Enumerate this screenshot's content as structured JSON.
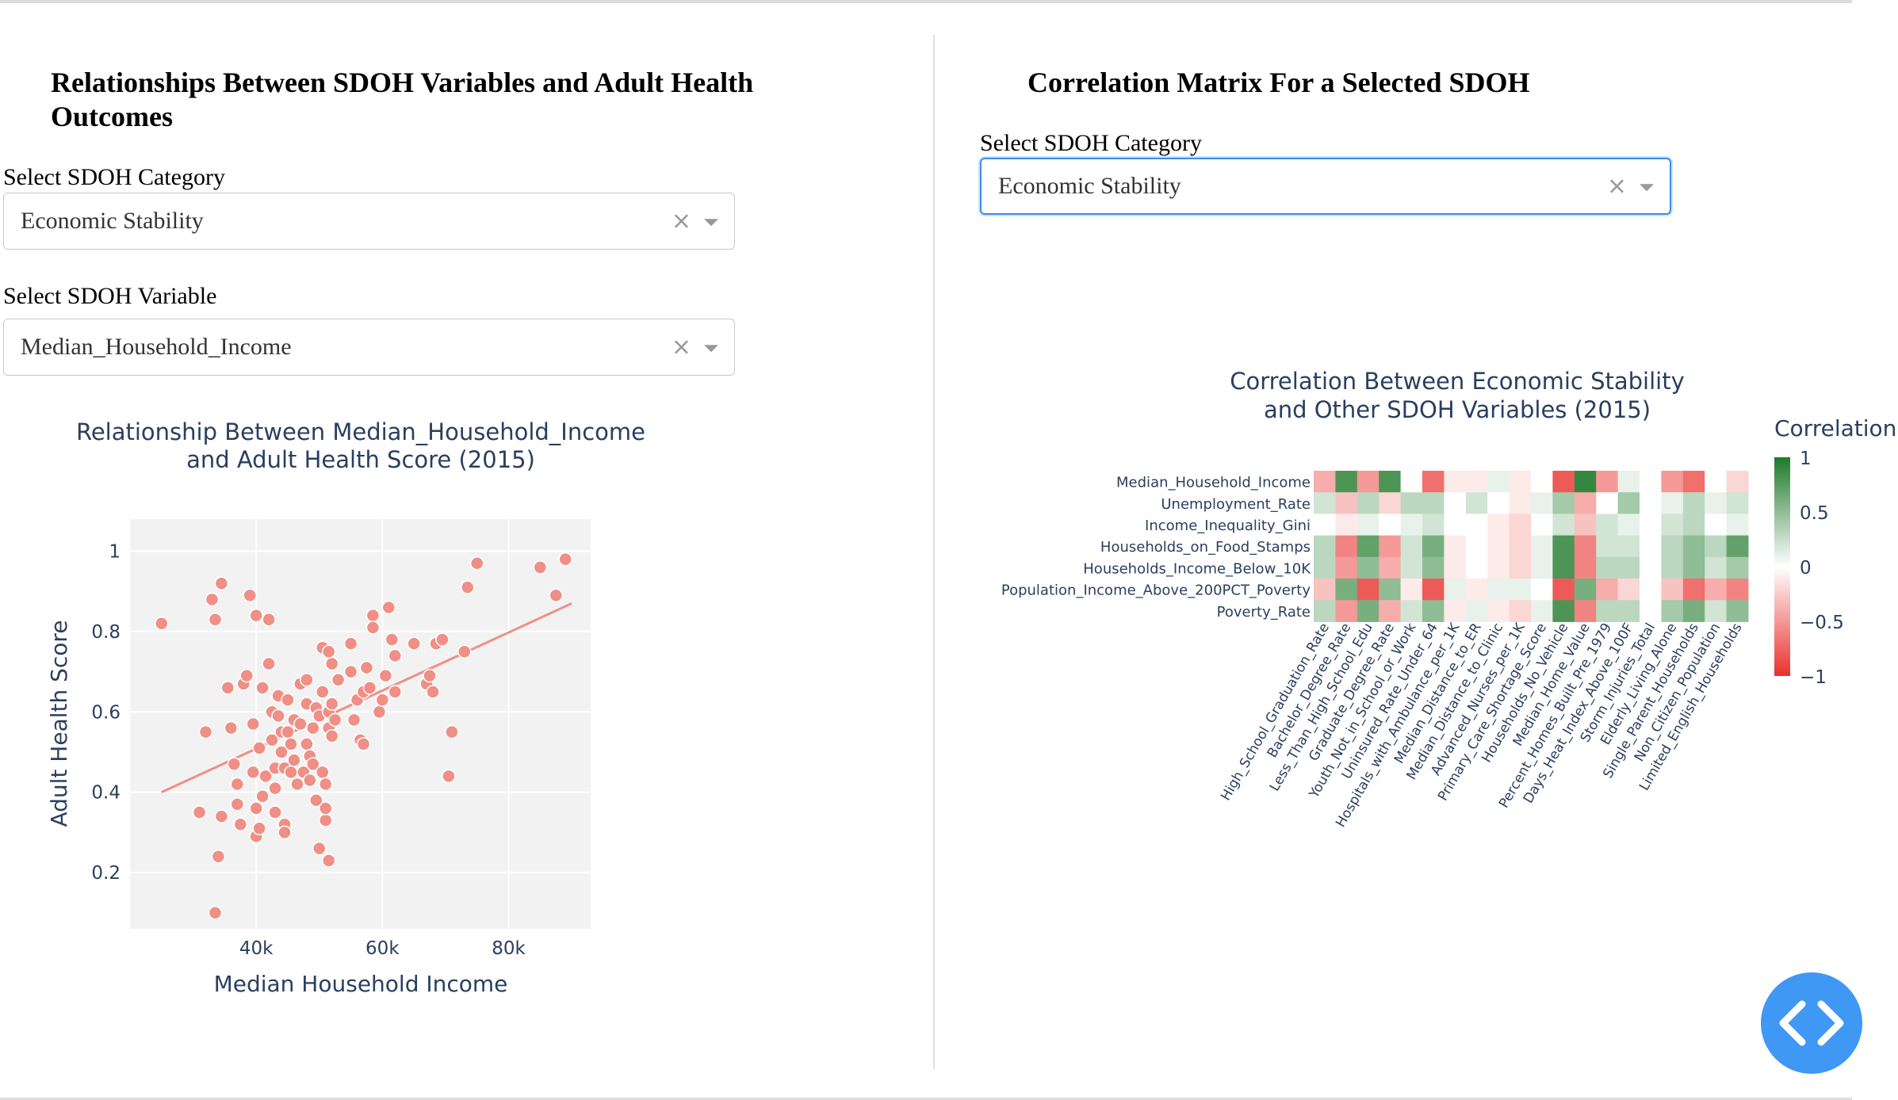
{
  "left": {
    "title": "Relationships Between SDOH Variables and Adult Health Outcomes",
    "category_label": "Select SDOH Category",
    "category_value": "Economic Stability",
    "variable_label": "Select SDOH Variable",
    "variable_value": "Median_Household_Income"
  },
  "right": {
    "title": "Correlation Matrix For a Selected SDOH",
    "category_label": "Select SDOH Category",
    "category_value": "Economic Stability"
  },
  "icons": {
    "clear": "×",
    "dropdown": "chevron-down-icon",
    "code_button": "code-brackets-icon"
  },
  "colors": {
    "scatter": "#ef8f86",
    "focus_border": "#3a8ee6",
    "fab": "#3f98f4",
    "pos": "#1f7a2a",
    "neg": "#e8322e"
  },
  "chart_data": [
    {
      "type": "scatter",
      "title_line1": "Relationship Between Median_Household_Income",
      "title_line2": "and Adult Health Score (2015)",
      "xlabel": "Median Household Income",
      "ylabel": "Adult Health Score",
      "xlim": [
        20000,
        93000
      ],
      "ylim": [
        0.06,
        1.08
      ],
      "xticks": [
        {
          "v": 40000,
          "t": "40k"
        },
        {
          "v": 60000,
          "t": "60k"
        },
        {
          "v": 80000,
          "t": "80k"
        }
      ],
      "yticks": [
        {
          "v": 0.2,
          "t": "0.2"
        },
        {
          "v": 0.4,
          "t": "0.4"
        },
        {
          "v": 0.6,
          "t": "0.6"
        },
        {
          "v": 0.8,
          "t": "0.8"
        },
        {
          "v": 1,
          "t": "1"
        }
      ],
      "trendline": [
        [
          25000,
          0.4
        ],
        [
          90000,
          0.87
        ]
      ],
      "points": [
        [
          25000,
          0.82
        ],
        [
          33000,
          0.88
        ],
        [
          33500,
          0.83
        ],
        [
          34500,
          0.92
        ],
        [
          34000,
          0.24
        ],
        [
          33500,
          0.1
        ],
        [
          31000,
          0.35
        ],
        [
          32000,
          0.55
        ],
        [
          34500,
          0.34
        ],
        [
          35500,
          0.66
        ],
        [
          36000,
          0.56
        ],
        [
          36500,
          0.47
        ],
        [
          37000,
          0.42
        ],
        [
          37000,
          0.37
        ],
        [
          37500,
          0.32
        ],
        [
          38000,
          0.67
        ],
        [
          38500,
          0.69
        ],
        [
          39000,
          0.89
        ],
        [
          39500,
          0.57
        ],
        [
          39500,
          0.45
        ],
        [
          40000,
          0.36
        ],
        [
          40000,
          0.29
        ],
        [
          40500,
          0.31
        ],
        [
          40500,
          0.51
        ],
        [
          41000,
          0.66
        ],
        [
          41000,
          0.39
        ],
        [
          41500,
          0.44
        ],
        [
          42000,
          0.72
        ],
        [
          42000,
          0.83
        ],
        [
          42500,
          0.6
        ],
        [
          42500,
          0.53
        ],
        [
          43000,
          0.46
        ],
        [
          43000,
          0.41
        ],
        [
          43000,
          0.35
        ],
        [
          43500,
          0.64
        ],
        [
          43500,
          0.59
        ],
        [
          44000,
          0.55
        ],
        [
          44000,
          0.5
        ],
        [
          44500,
          0.46
        ],
        [
          44500,
          0.32
        ],
        [
          44500,
          0.3
        ],
        [
          45000,
          0.63
        ],
        [
          45000,
          0.55
        ],
        [
          45500,
          0.52
        ],
        [
          45500,
          0.45
        ],
        [
          46000,
          0.58
        ],
        [
          46000,
          0.48
        ],
        [
          46500,
          0.42
        ],
        [
          47000,
          0.57
        ],
        [
          47000,
          0.67
        ],
        [
          47500,
          0.45
        ],
        [
          48000,
          0.62
        ],
        [
          48000,
          0.52
        ],
        [
          48000,
          0.68
        ],
        [
          48500,
          0.49
        ],
        [
          48500,
          0.43
        ],
        [
          49000,
          0.47
        ],
        [
          49000,
          0.56
        ],
        [
          49500,
          0.61
        ],
        [
          49500,
          0.38
        ],
        [
          50000,
          0.26
        ],
        [
          50000,
          0.59
        ],
        [
          50500,
          0.65
        ],
        [
          50500,
          0.45
        ],
        [
          51000,
          0.42
        ],
        [
          51000,
          0.33
        ],
        [
          51000,
          0.36
        ],
        [
          51500,
          0.6
        ],
        [
          51500,
          0.56
        ],
        [
          51500,
          0.23
        ],
        [
          52000,
          0.72
        ],
        [
          52000,
          0.62
        ],
        [
          52000,
          0.54
        ],
        [
          52500,
          0.58
        ],
        [
          53000,
          0.68
        ],
        [
          50500,
          0.76
        ],
        [
          51500,
          0.75
        ],
        [
          55000,
          0.77
        ],
        [
          55000,
          0.7
        ],
        [
          55500,
          0.58
        ],
        [
          56000,
          0.63
        ],
        [
          56500,
          0.53
        ],
        [
          57000,
          0.52
        ],
        [
          57500,
          0.71
        ],
        [
          57000,
          0.65
        ],
        [
          58000,
          0.66
        ],
        [
          58500,
          0.84
        ],
        [
          58500,
          0.81
        ],
        [
          59500,
          0.6
        ],
        [
          60000,
          0.63
        ],
        [
          60500,
          0.69
        ],
        [
          61000,
          0.86
        ],
        [
          61500,
          0.78
        ],
        [
          62000,
          0.74
        ],
        [
          62000,
          0.65
        ],
        [
          65000,
          0.77
        ],
        [
          67000,
          0.67
        ],
        [
          67500,
          0.69
        ],
        [
          68000,
          0.65
        ],
        [
          68500,
          0.77
        ],
        [
          69500,
          0.78
        ],
        [
          70500,
          0.44
        ],
        [
          71000,
          0.55
        ],
        [
          73000,
          0.75
        ],
        [
          73500,
          0.91
        ],
        [
          75000,
          0.97
        ],
        [
          85000,
          0.96
        ],
        [
          87500,
          0.89
        ],
        [
          89000,
          0.98
        ],
        [
          40000,
          0.84
        ]
      ]
    },
    {
      "type": "heatmap",
      "title_line1": "Correlation Between Economic Stability",
      "title_line2": "and Other SDOH Variables (2015)",
      "colorbar_title": "Correlation",
      "colorbar_ticks": [
        {
          "v": 1,
          "t": "1"
        },
        {
          "v": 0.5,
          "t": "0.5"
        },
        {
          "v": 0,
          "t": "0"
        },
        {
          "v": -0.5,
          "t": "−0.5"
        },
        {
          "v": -1,
          "t": "−1"
        }
      ],
      "rows": [
        "Median_Household_Income",
        "Unemployment_Rate",
        "Income_Inequality_Gini",
        "Households_on_Food_Stamps",
        "Households_Income_Below_10K",
        "Population_Income_Above_200PCT_Poverty",
        "Poverty_Rate"
      ],
      "columns": [
        "High_School_Graduation_Rate",
        "Bachelor_Degree_Rate",
        "Less_Than_High_School_Edu",
        "Graduate_Degree_Rate",
        "Youth_Not_in_School_or_Work",
        "Uninsured_Rate_Under_64",
        "Hospitals_with_Ambulance_per_1K",
        "Median_Distance_to_ER",
        "Median_Distance_to_Clinic",
        "Advanced_Nurses_per_1K",
        "Primary_Care_Shortage_Score",
        "Households_No_Vehicle",
        "Median_Home_Value",
        "Percent_Homes_Built_Pre_1979",
        "Days_Heat_Index_Above_100F",
        "Storm_Injuries_Total",
        "Elderly_Living_Alone",
        "Single_Parent_Households",
        "Non_Citizen_Population",
        "Limited_English_Households"
      ],
      "values": [
        [
          -0.4,
          0.8,
          -0.5,
          0.8,
          0.0,
          -0.7,
          -0.1,
          -0.1,
          0.1,
          -0.1,
          0.0,
          -0.8,
          0.9,
          -0.5,
          0.1,
          0.0,
          -0.5,
          -0.7,
          0.0,
          -0.2
        ],
        [
          0.2,
          -0.3,
          0.3,
          -0.2,
          0.3,
          0.3,
          0.0,
          0.2,
          0.0,
          -0.1,
          0.1,
          0.4,
          -0.4,
          0.0,
          0.4,
          0.0,
          0.1,
          0.3,
          0.1,
          0.2
        ],
        [
          0.0,
          -0.1,
          0.1,
          0.0,
          0.1,
          0.2,
          0.0,
          0.0,
          -0.1,
          -0.2,
          0.0,
          0.2,
          -0.3,
          0.2,
          0.1,
          0.0,
          0.2,
          0.3,
          0.0,
          0.1
        ],
        [
          0.3,
          -0.6,
          0.7,
          -0.5,
          0.2,
          0.6,
          -0.1,
          0.0,
          -0.1,
          -0.2,
          0.1,
          0.8,
          -0.6,
          0.2,
          0.2,
          0.0,
          0.3,
          0.5,
          0.3,
          0.7
        ],
        [
          0.3,
          -0.5,
          0.5,
          -0.4,
          0.2,
          0.5,
          -0.1,
          0.0,
          -0.1,
          -0.2,
          0.1,
          0.8,
          -0.6,
          0.3,
          0.3,
          0.0,
          0.3,
          0.5,
          0.2,
          0.4
        ],
        [
          -0.3,
          0.6,
          -0.8,
          0.5,
          -0.1,
          -0.8,
          0.1,
          -0.1,
          0.1,
          0.1,
          0.0,
          -0.8,
          0.6,
          -0.4,
          -0.2,
          0.0,
          -0.3,
          -0.7,
          -0.4,
          -0.6
        ],
        [
          0.3,
          -0.5,
          0.6,
          -0.4,
          0.2,
          0.5,
          -0.1,
          0.1,
          -0.1,
          -0.2,
          0.1,
          0.8,
          -0.6,
          0.3,
          0.3,
          0.0,
          0.4,
          0.6,
          0.2,
          0.5
        ]
      ]
    }
  ]
}
